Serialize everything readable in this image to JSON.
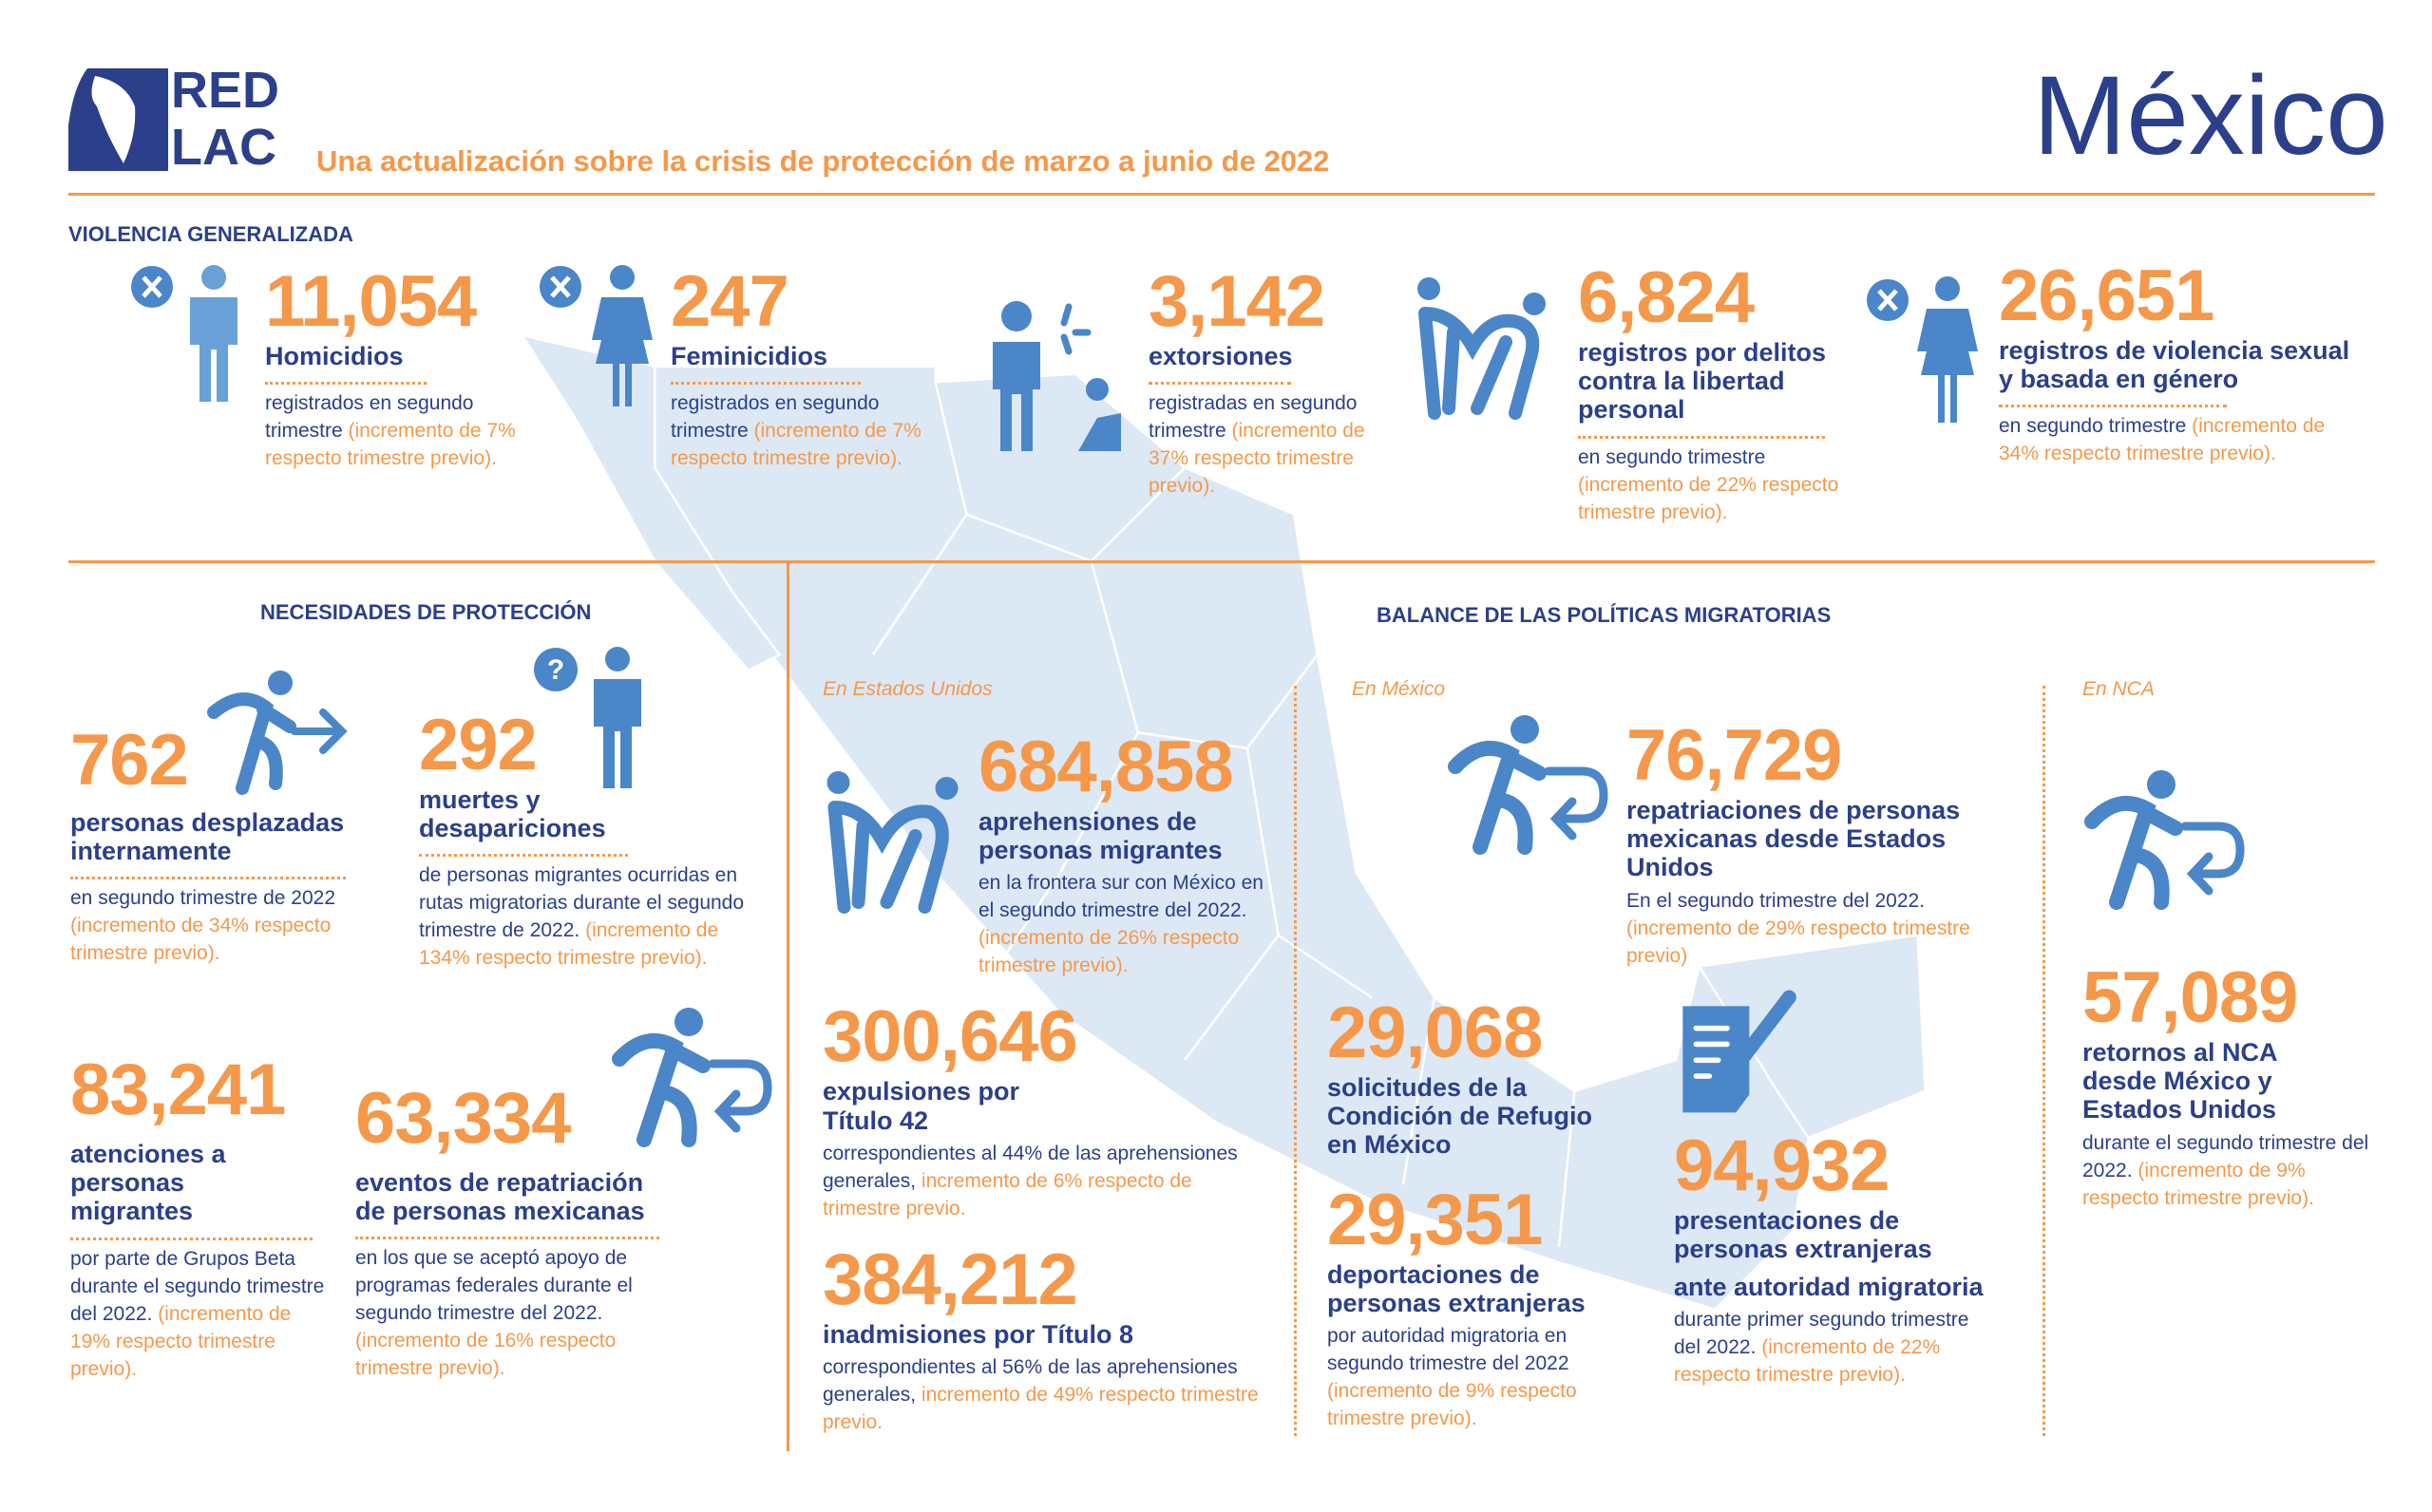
{
  "header": {
    "logo_text": [
      "RED",
      "LAC"
    ],
    "subtitle": "Una actualización sobre la crisis de protección de marzo a junio de 2022",
    "country": "México"
  },
  "colors": {
    "accent": "#f5984a",
    "text": "#2b3f8a",
    "icon": "#4a86c8",
    "map": "#dce8f4"
  },
  "violencia": {
    "title": "VIOLENCIA GENERALIZADA",
    "items": [
      {
        "icon": "person-x-icon",
        "number": "11,054",
        "label": "Homicidios",
        "desc": "registrados en segundo trimestre ",
        "desc_orange": "(incremento de 7% respecto trimestre previo)."
      },
      {
        "icon": "woman-x-icon",
        "number": "247",
        "label": "Feminicidios",
        "desc": "registrados en segundo trimestre ",
        "desc_orange": "(incremento de 7% respecto trimestre previo)."
      },
      {
        "icon": "extortion-icon",
        "number": "3,142",
        "label": "extorsiones",
        "desc": "registradas en segundo trimestre ",
        "desc_orange": "(incremento de 37% respecto trimestre previo)."
      },
      {
        "icon": "kidnapping-icon",
        "number": "6,824",
        "label": "registros por delitos contra la libertad personal",
        "desc": "en segundo trimestre ",
        "desc_orange": "(incremento de 22% respecto trimestre previo)."
      },
      {
        "icon": "woman-x-icon",
        "number": "26,651",
        "label": "registros de violencia sexual y basada en género",
        "desc": "en segundo trimestre ",
        "desc_orange": "(incremento de 34% respecto trimestre previo)."
      }
    ]
  },
  "necesidades": {
    "title": "NECESIDADES DE PROTECCIÓN",
    "items": [
      {
        "icon": "displaced-person-icon",
        "number": "762",
        "label": "personas desplazadas internamente",
        "desc": "en segundo trimestre de 2022 ",
        "desc_orange": "(incremento de 34% respecto trimestre previo)."
      },
      {
        "icon": "missing-person-icon",
        "number": "292",
        "label": "muertes y desapariciones",
        "desc": "de personas migrantes ocurridas en rutas migratorias durante el segundo trimestre de 2022. ",
        "desc_orange": "(incremento de 134% respecto trimestre previo)."
      },
      {
        "number": "83,241",
        "label": "atenciones a personas migrantes",
        "desc": "por parte de Grupos Beta durante el segundo trimestre del 2022. ",
        "desc_orange": "(incremento de 19% respecto trimestre previo)."
      },
      {
        "icon": "return-person-icon",
        "number": "63,334",
        "label": "eventos de repatriación de personas mexicanas",
        "desc": "en los que se aceptó apoyo de programas federales durante el segundo trimestre del 2022. ",
        "desc_orange": "(incremento de 16% respecto trimestre previo)."
      }
    ]
  },
  "balance": {
    "title": "BALANCE DE LAS POLÍTICAS MIGRATORIAS",
    "sub_us": "En Estados Unidos",
    "sub_mx": "En México",
    "sub_nca": "En NCA",
    "items": [
      {
        "icon": "apprehension-icon",
        "number": "684,858",
        "label": "aprehensiones de personas migrantes",
        "desc": "en la frontera sur con México en el segundo trimestre del 2022. ",
        "desc_orange": "(incremento de 26% respecto trimestre previo)."
      },
      {
        "number": "300,646",
        "label": "expulsiones por Título 42",
        "desc": "correspondientes al 44% de las aprehensiones generales, ",
        "desc_orange": "incremento de 6% respecto de trimestre previo."
      },
      {
        "number": "384,212",
        "label": "inadmisiones por Título 8",
        "desc": "correspondientes al 56% de las aprehensiones generales, ",
        "desc_orange": "incremento de 49% respecto trimestre previo."
      },
      {
        "icon": "return-person-icon",
        "number": "76,729",
        "label": "repatriaciones de personas mexicanas desde Estados Unidos",
        "desc": "En el segundo trimestre del 2022. ",
        "desc_orange": "(incremento de 29% respecto trimestre previo)"
      },
      {
        "number": "29,068",
        "label": "solicitudes de la Condición de Refugio en México"
      },
      {
        "number": "29,351",
        "label": "deportaciones de personas extranjeras",
        "desc": "por autoridad migratoria en segundo trimestre del 2022 ",
        "desc_orange": "(incremento de 9% respecto trimestre previo)."
      },
      {
        "icon": "document-pen-icon",
        "number": "94,932",
        "label": "presentaciones de personas extranjeras",
        "label2": "ante autoridad migratoria",
        "desc": "durante primer segundo trimestre del 2022. ",
        "desc_orange": "(incremento de 22% respecto trimestre previo)."
      },
      {
        "icon": "return-person-icon",
        "number": "57,089",
        "label": "retornos al NCA desde México y Estados Unidos",
        "desc": "durante el segundo trimestre del 2022. ",
        "desc_orange": "(incremento de 9% respecto trimestre previo)."
      }
    ]
  }
}
